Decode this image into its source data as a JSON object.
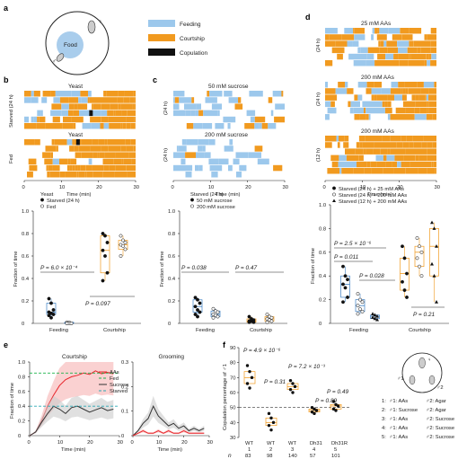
{
  "colors": {
    "feeding": "#9cc8ec",
    "courtship": "#f19a1f",
    "copulation": "#111111",
    "blue_pt": "#3d7fc2",
    "grey": "#8a8a8a",
    "red": "#e8252b",
    "green": "#1bb34a",
    "teal": "#2aa7b3"
  },
  "panel_labels": {
    "a": "a",
    "b": "b",
    "c": "c",
    "d": "d",
    "e": "e",
    "f": "f"
  },
  "legend": {
    "feeding": "Feeding",
    "courtship": "Courtship",
    "copulation": "Copulation"
  },
  "arena": {
    "food": "Food",
    "female": "♀",
    "male": "♂"
  },
  "raster": {
    "b1_title": "Yeast",
    "b1_ylabel": "Starved (24 h)",
    "b2_title": "Yeast",
    "b2_ylabel": "Fed",
    "c1_title": "50 mM sucrose",
    "c1_ylabel": "(24 h)",
    "c2_title": "200 mM sucrose",
    "c2_ylabel": "(24 h)",
    "d1_title": "25 mM AAs",
    "d1_ylabel": "(24 h)",
    "d2_title": "200 mM AAs",
    "d2_ylabel": "(24 h)",
    "d3_title": "200 mM AAs",
    "d3_ylabel": "(12 h)",
    "xlabel": "Time (min)",
    "xticks": [
      "0",
      "10",
      "20",
      "30"
    ]
  },
  "chart_data": [
    {
      "type": "scatter",
      "panel": "b",
      "ylabel": "Fraction of time",
      "ylim": [
        0,
        1
      ],
      "yticks": [
        "0",
        "0.2",
        "0.4",
        "0.6",
        "0.8",
        "1.0"
      ],
      "title": "Yeast",
      "legend": [
        "Starved (24 h)",
        "Fed"
      ],
      "categories": [
        "Feeding",
        "Courtship"
      ],
      "series": [
        {
          "name": "Starved (24 h)",
          "feeding": [
            0.22,
            0.18,
            0.12,
            0.1,
            0.09,
            0.08,
            0.07,
            0.05
          ],
          "courtship": [
            0.8,
            0.78,
            0.72,
            0.65,
            0.6,
            0.45,
            0.38
          ]
        },
        {
          "name": "Fed",
          "feeding": [
            0.01,
            0.01,
            0.0,
            0.0,
            0.0,
            0.0,
            0.0
          ],
          "courtship": [
            0.78,
            0.74,
            0.72,
            0.7,
            0.69,
            0.66,
            0.6
          ]
        }
      ],
      "stats": [
        "P = 6.0 × 10⁻⁴",
        "P = 0.097"
      ]
    },
    {
      "type": "scatter",
      "panel": "c",
      "ylabel": "Fraction of time",
      "ylim": [
        0,
        1
      ],
      "yticks": [
        "0",
        "0.2",
        "0.4",
        "0.6",
        "0.8",
        "1.0"
      ],
      "legend_title": "Starved (24 h)",
      "legend": [
        "50 mM sucrose",
        "200 mM sucrose"
      ],
      "categories": [
        "Feeding",
        "Courtship"
      ],
      "series": [
        {
          "name": "50 mM sucrose",
          "feeding": [
            0.23,
            0.21,
            0.18,
            0.15,
            0.12,
            0.1,
            0.08,
            0.06
          ],
          "courtship": [
            0.06,
            0.04,
            0.03,
            0.02,
            0.02,
            0.01,
            0.01
          ]
        },
        {
          "name": "200 mM sucrose",
          "feeding": [
            0.13,
            0.11,
            0.1,
            0.08,
            0.07,
            0.06,
            0.05
          ],
          "courtship": [
            0.08,
            0.06,
            0.05,
            0.04,
            0.03,
            0.02,
            0.01
          ]
        }
      ],
      "stats": [
        "P = 0.038",
        "P = 0.47"
      ]
    },
    {
      "type": "scatter",
      "panel": "d",
      "ylabel": "Fraction of time",
      "ylim": [
        0,
        1
      ],
      "yticks": [
        "0",
        "0.2",
        "0.4",
        "0.6",
        "0.8",
        "1.0"
      ],
      "legend": [
        "Starved (24 h) + 25 mM AAs",
        "Starved (24 h) + 200 mM AAs",
        "Starved (12 h) + 200 mM AAs"
      ],
      "categories": [
        "Feeding",
        "Courtship"
      ],
      "series": [
        {
          "name": "Starved (24 h) + 25 mM AAs",
          "feeding": [
            0.48,
            0.4,
            0.37,
            0.33,
            0.3,
            0.22,
            0.18
          ],
          "courtship": [
            0.65,
            0.55,
            0.42,
            0.35,
            0.28,
            0.22
          ]
        },
        {
          "name": "Starved (24 h) + 200 mM AAs",
          "feeding": [
            0.25,
            0.2,
            0.18,
            0.15,
            0.12,
            0.1,
            0.08
          ],
          "courtship": [
            0.72,
            0.65,
            0.6,
            0.55,
            0.48,
            0.4
          ]
        },
        {
          "name": "Starved (12 h) + 200 mM AAs",
          "feeding": [
            0.08,
            0.07,
            0.06,
            0.05,
            0.04,
            0.03
          ],
          "courtship": [
            0.85,
            0.8,
            0.65,
            0.5,
            0.4,
            0.18
          ]
        }
      ],
      "stats": [
        "P = 2.5 × 10⁻⁶",
        "P = 0.011",
        "P = 0.028",
        "P = 0.21"
      ]
    },
    {
      "type": "line",
      "panel": "e",
      "title": "Courtship",
      "ylabel": "Fraction of time",
      "xlabel": "Time (min)",
      "xlim": [
        0,
        30
      ],
      "ylim": [
        0,
        1
      ],
      "yticks": [
        "0",
        "0.2",
        "0.4",
        "0.6",
        "0.8",
        "1.0"
      ],
      "xticks": [
        "0",
        "10",
        "20",
        "30"
      ],
      "x": [
        0,
        2,
        4,
        6,
        8,
        10,
        12,
        14,
        16,
        18,
        20,
        22,
        24,
        26,
        28
      ],
      "series": [
        {
          "name": "AAs",
          "values": [
            0.0,
            0.05,
            0.2,
            0.4,
            0.55,
            0.68,
            0.76,
            0.8,
            0.82,
            0.85,
            0.83,
            0.88,
            0.84,
            0.86,
            0.84
          ]
        },
        {
          "name": "Sucrose",
          "values": [
            0.0,
            0.05,
            0.18,
            0.3,
            0.4,
            0.36,
            0.3,
            0.38,
            0.4,
            0.36,
            0.32,
            0.35,
            0.38,
            0.34,
            0.36
          ]
        }
      ],
      "reference_lines": [
        {
          "name": "Fed",
          "value": 0.85
        },
        {
          "name": "Starved",
          "value": 0.4
        }
      ]
    },
    {
      "type": "line",
      "panel": "e2",
      "title": "Grooming",
      "xlabel": "Time (min)",
      "xlim": [
        0,
        30
      ],
      "ylim": [
        0,
        0.3
      ],
      "yticks": [
        "0",
        "0.1",
        "0.2",
        "0.3"
      ],
      "xticks": [
        "0",
        "10",
        "20",
        "30"
      ],
      "x": [
        0,
        2,
        4,
        6,
        8,
        10,
        12,
        14,
        16,
        18,
        20,
        22,
        24,
        26,
        28
      ],
      "series": [
        {
          "name": "Sucrose",
          "values": [
            0.0,
            0.02,
            0.05,
            0.07,
            0.12,
            0.08,
            0.06,
            0.04,
            0.05,
            0.03,
            0.04,
            0.02,
            0.03,
            0.02,
            0.03
          ]
        },
        {
          "name": "AAs",
          "values": [
            0.0,
            0.01,
            0.02,
            0.01,
            0.01,
            0.02,
            0.01,
            0.02,
            0.01,
            0.01,
            0.02,
            0.01,
            0.01,
            0.01,
            0.01
          ]
        }
      ]
    },
    {
      "type": "scatter",
      "panel": "f",
      "ylabel": "Copulation percentage of ♂1",
      "ylim": [
        30,
        90
      ],
      "yticks": [
        "30",
        "40",
        "50",
        "60",
        "70",
        "80",
        "90"
      ],
      "categories": [
        "WT",
        "WT",
        "WT",
        "Dh31",
        "Dh31R"
      ],
      "group_numbers": [
        "1",
        "2",
        "3",
        "4",
        "5"
      ],
      "n_label": "n",
      "n": [
        "83",
        "98",
        "140",
        "57",
        "101"
      ],
      "values": [
        [
          78,
          74,
          70,
          66,
          63
        ],
        [
          46,
          43,
          40,
          38,
          35
        ],
        [
          68,
          66,
          64,
          62,
          60
        ],
        [
          50,
          49,
          48,
          47,
          46
        ],
        [
          54,
          52,
          51,
          49,
          48
        ]
      ],
      "reference_line": 50,
      "stats": [
        "P = 4.9 × 10⁻⁶",
        "P = 0.31",
        "P = 7.2 × 10⁻³",
        "P = 0.89",
        "P = 0.49"
      ],
      "conditions": [
        {
          "num": "1:",
          "m": "♂1: AAs",
          "f": "♂2: Agar"
        },
        {
          "num": "2:",
          "m": "♂1: Sucrose",
          "f": "♂2: Agar"
        },
        {
          "num": "3:",
          "m": "♂1: AAs",
          "f": "♂2: Sucrose"
        },
        {
          "num": "4:",
          "m": "♂1: AAs",
          "f": "♂2: Sucrose"
        },
        {
          "num": "5:",
          "m": "♂1: AAs",
          "f": "♂2: Sucrose"
        }
      ],
      "diagram_labels": {
        "m1": "♂1",
        "m2": "♂2",
        "f": "♀"
      }
    }
  ]
}
